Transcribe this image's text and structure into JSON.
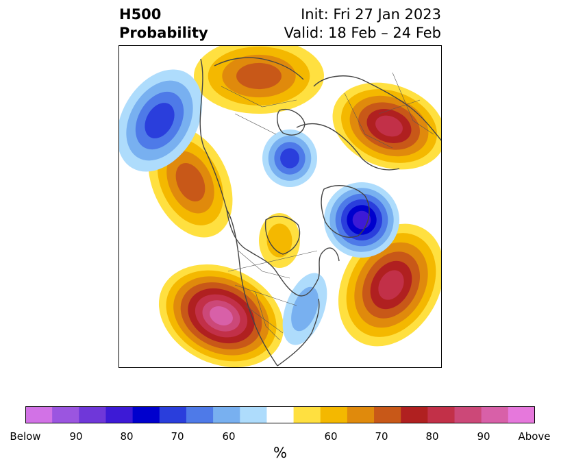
{
  "title": {
    "left_line1": "H500",
    "left_line2": "Probability",
    "right_line1": "Init: Fri 27 Jan 2023",
    "right_line2": "Valid: 18 Feb – 24 Feb"
  },
  "colorbar": {
    "unit": "%",
    "colors": [
      "#d272e6",
      "#9b55e0",
      "#6f37d9",
      "#3d1ad6",
      "#0000cd",
      "#2a3edc",
      "#4e7ae8",
      "#78b0f0",
      "#aedcfc",
      "#ffffff",
      "#ffe040",
      "#f4b800",
      "#e08a0c",
      "#c85818",
      "#b02020",
      "#c23048",
      "#cc4878",
      "#d860a8",
      "#e678dc"
    ],
    "tick_labels": [
      "Below",
      "90",
      "80",
      "70",
      "60",
      "60",
      "70",
      "80",
      "90",
      "Above"
    ]
  },
  "map_anomalies": [
    {
      "name": "gulf-of-alaska-positive",
      "kind": "above",
      "peak_percent": 90
    },
    {
      "name": "north-atlantic-positive",
      "kind": "above",
      "peak_percent": 80
    },
    {
      "name": "scandinavia-russia-positive",
      "kind": "above",
      "peak_percent": 80
    },
    {
      "name": "eastern-siberia-positive",
      "kind": "above",
      "peak_percent": 70
    },
    {
      "name": "north-pacific-positive",
      "kind": "above",
      "peak_percent": 70
    },
    {
      "name": "canadian-arctic-positive",
      "kind": "above",
      "peak_percent": 60
    },
    {
      "name": "greenland-iceland-negative",
      "kind": "below",
      "peak_percent": 80
    },
    {
      "name": "siberian-arctic-negative",
      "kind": "below",
      "peak_percent": 70
    },
    {
      "name": "bering-sea-negative",
      "kind": "below",
      "peak_percent": 70
    },
    {
      "name": "eastern-canada-negative",
      "kind": "below",
      "peak_percent": 60
    }
  ]
}
